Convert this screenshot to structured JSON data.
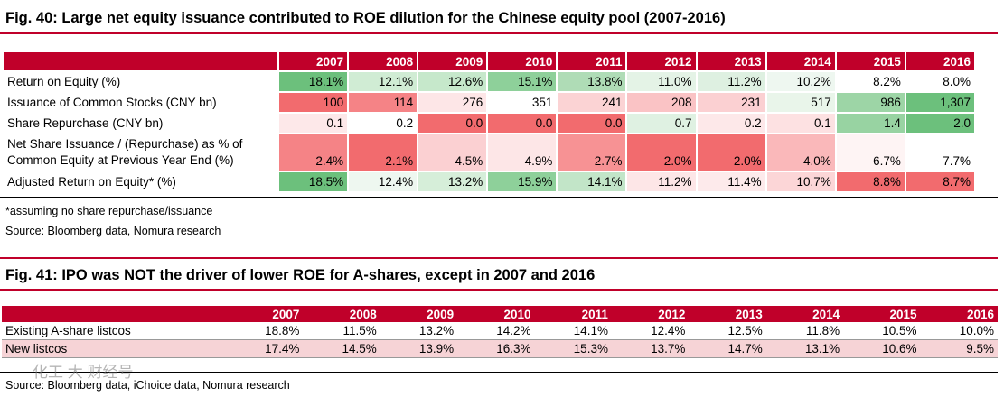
{
  "fig40": {
    "title": "Fig. 40: Large net equity issuance contributed to ROE dilution for the Chinese equity pool (2007-2016)",
    "years": [
      "2007",
      "2008",
      "2009",
      "2010",
      "2011",
      "2012",
      "2013",
      "2014",
      "2015",
      "2016"
    ],
    "rows": [
      {
        "label": "Return on Equity (%)",
        "values": [
          "18.1%",
          "12.1%",
          "12.6%",
          "15.1%",
          "13.8%",
          "11.0%",
          "11.2%",
          "10.2%",
          "8.2%",
          "8.0%"
        ],
        "colors": [
          "#6cc07c",
          "#d0ecd4",
          "#c6e8cb",
          "#8ed09a",
          "#afdcb6",
          "#e4f3e6",
          "#def0e1",
          "#eef7f0",
          "#ffffff",
          "#ffffff"
        ]
      },
      {
        "label": "Issuance of Common Stocks (CNY bn)",
        "values": [
          "100",
          "114",
          "276",
          "351",
          "241",
          "208",
          "231",
          "517",
          "986",
          "1,307"
        ],
        "colors": [
          "#f26b6e",
          "#f58386",
          "#fde6e7",
          "#ffffff",
          "#fbd3d4",
          "#fac3c5",
          "#fbd0d2",
          "#e9f5ea",
          "#9dd5a6",
          "#6cc07c"
        ]
      },
      {
        "label": "Share Repurchase (CNY bn)",
        "values": [
          "0.1",
          "0.2",
          "0.0",
          "0.0",
          "0.0",
          "0.7",
          "0.2",
          "0.1",
          "1.4",
          "2.0"
        ],
        "colors": [
          "#fde8e9",
          "#ffffff",
          "#f26b6e",
          "#f26b6e",
          "#f26b6e",
          "#dff1e2",
          "#fde8e9",
          "#fde1e2",
          "#98d3a2",
          "#6cc07c"
        ]
      },
      {
        "label": "Net Share Issuance / (Repurchase) as % of Common Equity at Previous Year End  (%)",
        "label_line1": "Net Share Issuance / (Repurchase) as % of",
        "label_line2": "Common Equity at Previous Year End  (%)",
        "values": [
          "2.4%",
          "2.1%",
          "4.5%",
          "4.9%",
          "2.7%",
          "2.0%",
          "2.0%",
          "4.0%",
          "6.7%",
          "7.7%"
        ],
        "colors": [
          "#f58386",
          "#f26b6e",
          "#fbd0d2",
          "#fde6e7",
          "#f79294",
          "#f26b6e",
          "#f26b6e",
          "#fab8ba",
          "#fef4f4",
          "#ffffff"
        ]
      },
      {
        "label": "Adjusted Return on Equity* (%)",
        "values": [
          "18.5%",
          "12.4%",
          "13.2%",
          "15.9%",
          "14.1%",
          "11.2%",
          "11.4%",
          "10.7%",
          "8.8%",
          "8.7%"
        ],
        "colors": [
          "#6cc07c",
          "#eef7f0",
          "#d6eed9",
          "#8ed09a",
          "#c2e5c8",
          "#fde6e7",
          "#fdeaeb",
          "#fcd6d7",
          "#f26b6e",
          "#f26b6e"
        ]
      }
    ],
    "footnote": "*assuming no share repurchase/issuance",
    "source": "Source: Bloomberg data, Nomura research"
  },
  "fig41": {
    "title": "Fig. 41: IPO was NOT the driver of lower ROE for A-shares, except in 2007 and 2016",
    "years": [
      "2007",
      "2008",
      "2009",
      "2010",
      "2011",
      "2012",
      "2013",
      "2014",
      "2015",
      "2016"
    ],
    "rows": [
      {
        "label": "Existing A-share listcos",
        "values": [
          "18.8%",
          "11.5%",
          "13.2%",
          "14.2%",
          "14.1%",
          "12.4%",
          "12.5%",
          "11.8%",
          "10.5%",
          "10.0%"
        ]
      },
      {
        "label": "New listcos",
        "values": [
          "17.4%",
          "14.5%",
          "13.9%",
          "16.3%",
          "15.3%",
          "13.7%",
          "14.7%",
          "13.1%",
          "10.6%",
          "9.5%"
        ]
      }
    ],
    "source": "Source: Bloomberg data, iChoice data, Nomura research"
  },
  "watermark": "化工 大 财经号"
}
